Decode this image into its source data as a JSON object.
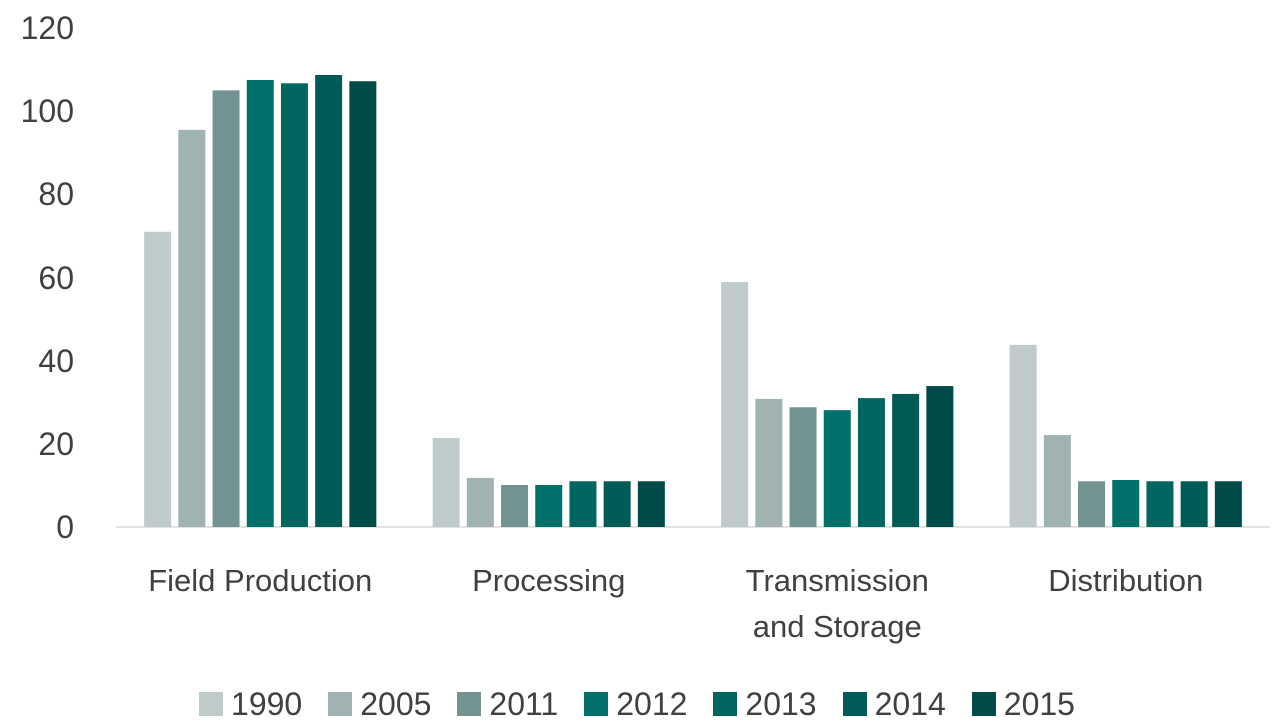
{
  "chart_data": {
    "type": "bar",
    "categories": [
      "Field Production",
      "Processing",
      "Transmission and Storage",
      "Distribution"
    ],
    "series": [
      {
        "name": "1990",
        "color": "#bfcbca",
        "values": [
          71,
          21.4,
          58.9,
          43.8
        ]
      },
      {
        "name": "2005",
        "color": "#a0b2b1",
        "values": [
          95.5,
          11.8,
          30.8,
          22.1
        ]
      },
      {
        "name": "2011",
        "color": "#729392",
        "values": [
          105,
          10.1,
          28.8,
          11
        ]
      },
      {
        "name": "2012",
        "color": "#00706b",
        "values": [
          107.5,
          10.1,
          28.1,
          11.3
        ]
      },
      {
        "name": "2013",
        "color": "#00665f",
        "values": [
          106.7,
          11,
          31,
          11
        ]
      },
      {
        "name": "2014",
        "color": "#005a55",
        "values": [
          108.7,
          11,
          32,
          11
        ]
      },
      {
        "name": "2015",
        "color": "#004c48",
        "values": [
          107.2,
          11,
          33.9,
          11
        ]
      }
    ],
    "ylim": [
      0,
      120
    ],
    "yticks": [
      0,
      20,
      40,
      60,
      80,
      100,
      120
    ],
    "grid": false,
    "legend": "bottom"
  }
}
